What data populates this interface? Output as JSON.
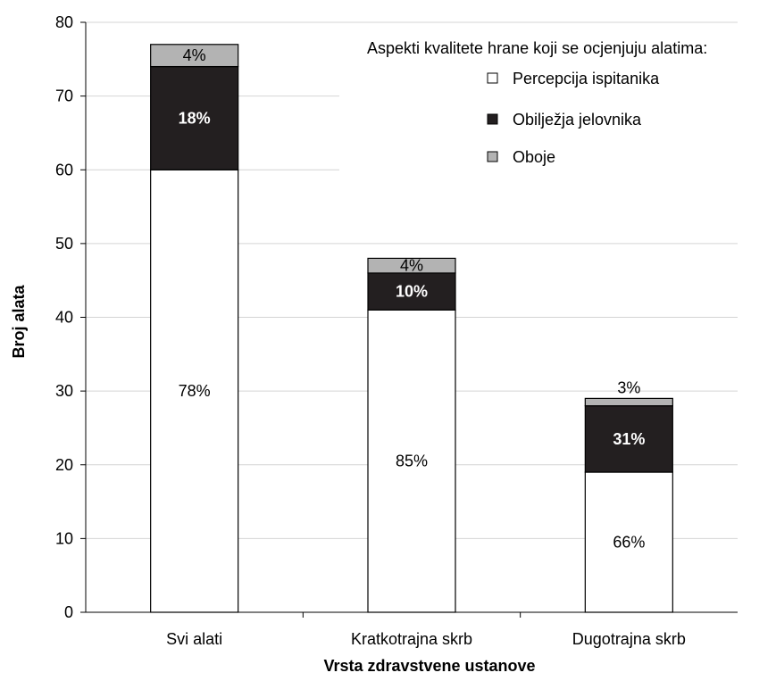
{
  "chart_data": {
    "type": "bar",
    "stacked": true,
    "title": "",
    "xlabel": "Vrsta zdravstvene ustanove",
    "ylabel": "Broj alata",
    "ylim": [
      0,
      80
    ],
    "yticks": [
      0,
      10,
      20,
      30,
      40,
      50,
      60,
      70,
      80
    ],
    "grid": true,
    "categories": [
      "Svi alati",
      "Kratkotrajna skrb",
      "Dugotrajna skrb"
    ],
    "series": [
      {
        "name": "Percepcija ispitanika",
        "values": [
          60,
          41,
          19
        ],
        "labels": [
          "78%",
          "85%",
          "66%"
        ],
        "color": "#ffffff",
        "label_color": "#000000"
      },
      {
        "name": "Obilježja jelovnika",
        "values": [
          14,
          5,
          9
        ],
        "labels": [
          "18%",
          "10%",
          "31%"
        ],
        "color": "#231f20",
        "label_color": "#ffffff"
      },
      {
        "name": "Oboje",
        "values": [
          3,
          2,
          1
        ],
        "labels": [
          "4%",
          "4%",
          "3%"
        ],
        "color": "#b3b3b3",
        "label_color": "#000000"
      }
    ],
    "legend": {
      "title": "Aspekti kvalitete hrane koji se ocjenjuju alatima:",
      "placement": "top-right"
    }
  }
}
